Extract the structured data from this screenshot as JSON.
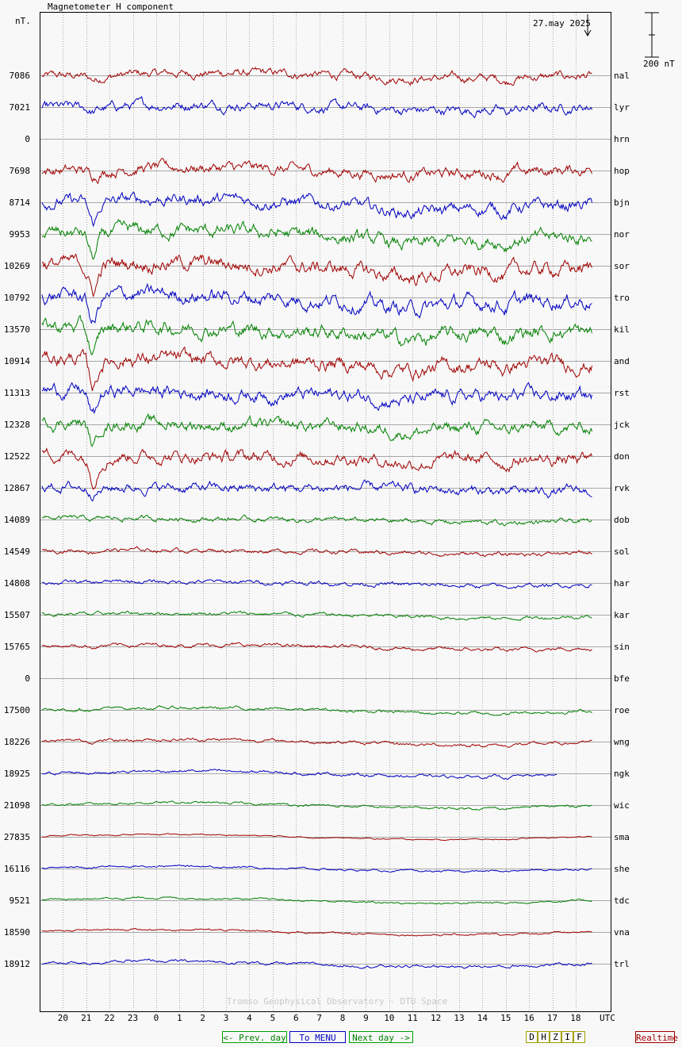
{
  "header": {
    "unit_label": "nT.",
    "title": "Magnetometer H component",
    "date_label": "27.may 2025",
    "scale_label": "200 nT",
    "watermark": "Tromso Geophysical Observatory - DTU Space"
  },
  "chart_data": {
    "type": "line",
    "title": "Magnetometer H component",
    "ylabel": "nT.",
    "xlabel": "UTC",
    "x_ticks": [
      "20",
      "21",
      "22",
      "23",
      "0",
      "1",
      "2",
      "3",
      "4",
      "5",
      "6",
      "7",
      "8",
      "9",
      "10",
      "11",
      "12",
      "13",
      "14",
      "15",
      "16",
      "17",
      "18"
    ],
    "x_unit": "UTC",
    "x_range_hours": [
      -5,
      19.5
    ],
    "scale_bar_nT": 200,
    "date": "27.may 2025",
    "grid": true,
    "stations": [
      {
        "code": "nal",
        "baseline": "7086",
        "color": "red",
        "amp": 0.35
      },
      {
        "code": "lyr",
        "baseline": "7021",
        "color": "blue",
        "amp": 0.4
      },
      {
        "code": "hrn",
        "baseline": "0",
        "color": "none",
        "amp": 0
      },
      {
        "code": "hop",
        "baseline": "7698",
        "color": "red",
        "amp": 0.45
      },
      {
        "code": "bjn",
        "baseline": "8714",
        "color": "blue",
        "amp": 0.5
      },
      {
        "code": "nor",
        "baseline": "9953",
        "color": "green",
        "amp": 0.55
      },
      {
        "code": "sor",
        "baseline": "10269",
        "color": "red",
        "amp": 0.6
      },
      {
        "code": "tro",
        "baseline": "10792",
        "color": "blue",
        "amp": 0.6
      },
      {
        "code": "kil",
        "baseline": "13570",
        "color": "green",
        "amp": 0.6
      },
      {
        "code": "and",
        "baseline": "10914",
        "color": "red",
        "amp": 0.6
      },
      {
        "code": "rst",
        "baseline": "11313",
        "color": "blue",
        "amp": 0.55
      },
      {
        "code": "jck",
        "baseline": "12328",
        "color": "green",
        "amp": 0.5
      },
      {
        "code": "don",
        "baseline": "12522",
        "color": "red",
        "amp": 0.5
      },
      {
        "code": "rvk",
        "baseline": "12867",
        "color": "blue",
        "amp": 0.4
      },
      {
        "code": "dob",
        "baseline": "14089",
        "color": "green",
        "amp": 0.2
      },
      {
        "code": "sol",
        "baseline": "14549",
        "color": "red",
        "amp": 0.17
      },
      {
        "code": "har",
        "baseline": "14808",
        "color": "blue",
        "amp": 0.17
      },
      {
        "code": "kar",
        "baseline": "15507",
        "color": "green",
        "amp": 0.15
      },
      {
        "code": "sin",
        "baseline": "15765",
        "color": "red",
        "amp": 0.15
      },
      {
        "code": "bfe",
        "baseline": "0",
        "color": "none",
        "amp": 0
      },
      {
        "code": "roe",
        "baseline": "17500",
        "color": "green",
        "amp": 0.13
      },
      {
        "code": "wng",
        "baseline": "18226",
        "color": "red",
        "amp": 0.13
      },
      {
        "code": "ngk",
        "baseline": "18925",
        "color": "blue",
        "amp": 0.12
      },
      {
        "code": "wic",
        "baseline": "21098",
        "color": "green",
        "amp": 0.1
      },
      {
        "code": "sma",
        "baseline": "27835",
        "color": "red",
        "amp": 0.05
      },
      {
        "code": "she",
        "baseline": "16116",
        "color": "blue",
        "amp": 0.08
      },
      {
        "code": "tdc",
        "baseline": "9521",
        "color": "green",
        "amp": 0.08
      },
      {
        "code": "vna",
        "baseline": "18590",
        "color": "red",
        "amp": 0.08
      },
      {
        "code": "trl",
        "baseline": "18912",
        "color": "blue",
        "amp": 0.12
      }
    ]
  },
  "nav": {
    "prev_label": "<- Prev. day",
    "menu_label": "To MENU",
    "next_label": "Next day ->",
    "components": [
      "D",
      "H",
      "Z",
      "I",
      "F"
    ],
    "realtime_label": "Realtime"
  },
  "colors": {
    "red": "#a00000",
    "blue": "#0000c0",
    "green": "#008000",
    "grid": "#a8a8a8",
    "prev_border": "#00a000",
    "menu_border": "#0000c0",
    "next_border": "#00a000",
    "realtime_border": "#a00000"
  }
}
